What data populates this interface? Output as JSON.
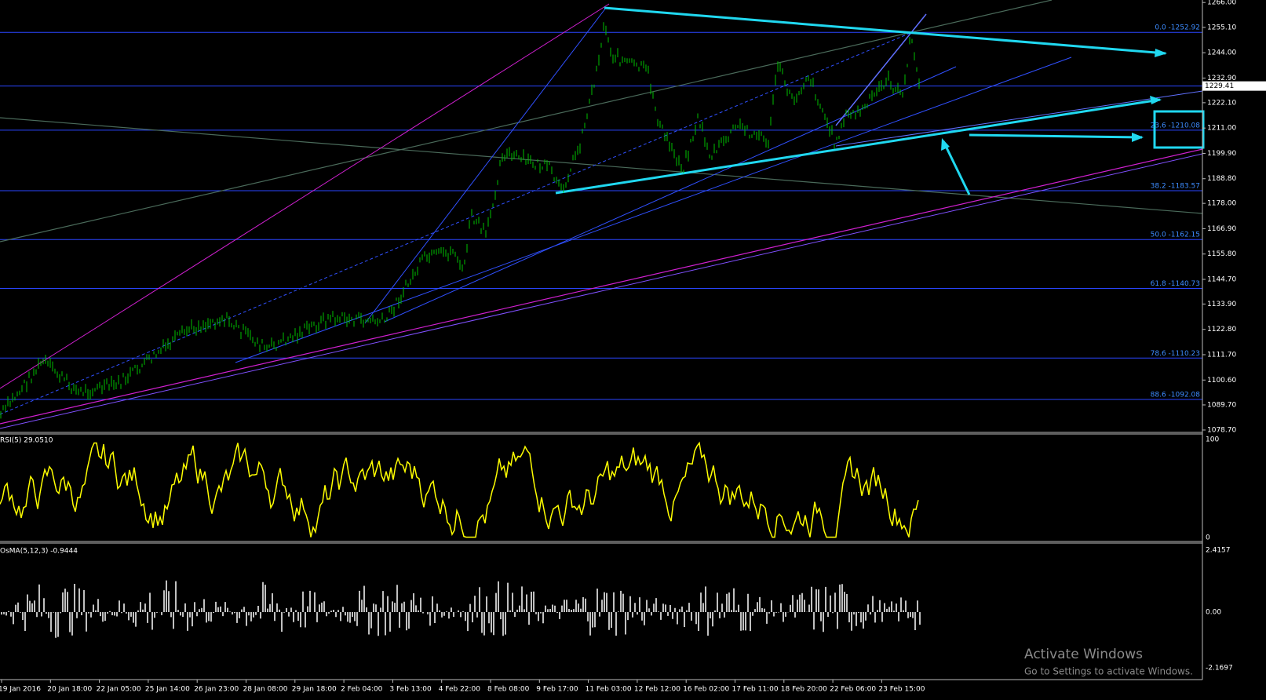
{
  "price_pane": {
    "ylim": [
      1078.0,
      1267.1
    ],
    "ticks": [
      {
        "value": 1266.0,
        "label": "1266.00"
      },
      {
        "value": 1255.1,
        "label": "1255.10"
      },
      {
        "value": 1244.0,
        "label": "1244.00"
      },
      {
        "value": 1232.9,
        "label": "1232.90"
      },
      {
        "value": 1222.1,
        "label": "1222.10"
      },
      {
        "value": 1211.0,
        "label": "1211.00"
      },
      {
        "value": 1199.9,
        "label": "1199.90"
      },
      {
        "value": 1188.8,
        "label": "1188.80"
      },
      {
        "value": 1178.0,
        "label": "1178.00"
      },
      {
        "value": 1166.9,
        "label": "1166.90"
      },
      {
        "value": 1155.8,
        "label": "1155.80"
      },
      {
        "value": 1144.7,
        "label": "1144.70"
      },
      {
        "value": 1133.9,
        "label": "1133.90"
      },
      {
        "value": 1122.8,
        "label": "1122.80"
      },
      {
        "value": 1111.7,
        "label": "1111.70"
      },
      {
        "value": 1100.6,
        "label": "1100.60"
      },
      {
        "value": 1089.7,
        "label": "1089.70"
      },
      {
        "value": 1078.7,
        "label": "1078.70"
      }
    ],
    "current_price": 1229.41,
    "fib_levels": [
      {
        "value": 1252.92,
        "label": "0.0 -1252.92"
      },
      {
        "value": 1210.08,
        "label": "23.6 -1210.08"
      },
      {
        "value": 1183.57,
        "label": "38.2 -1183.57"
      },
      {
        "value": 1162.15,
        "label": "50.0 -1162.15"
      },
      {
        "value": 1140.73,
        "label": "61.8 -1140.73"
      },
      {
        "value": 1110.23,
        "label": "78.6 -1110.23"
      },
      {
        "value": 1092.08,
        "label": "88.6 -1092.08"
      }
    ]
  },
  "rsi_pane": {
    "label": "RSI(5) 29.0510",
    "ylim": [
      0,
      100
    ],
    "ticks": [
      100,
      0
    ]
  },
  "osma_pane": {
    "label": "OsMA(5,12,3) -0.9444",
    "ylim": [
      -2.1697,
      2.4157
    ],
    "ticks": [
      2.4157,
      {
        "value": 0,
        "label": "0.00"
      },
      -2.1697
    ]
  },
  "time_axis": [
    "19 Jan 2016",
    "20 Jan 18:00",
    "22 Jan 05:00",
    "25 Jan 14:00",
    "26 Jan 23:00",
    "28 Jan 08:00",
    "29 Jan 18:00",
    "2 Feb 04:00",
    "3 Feb 13:00",
    "4 Feb 22:00",
    "8 Feb 08:00",
    "9 Feb 17:00",
    "11 Feb 03:00",
    "12 Feb 12:00",
    "16 Feb 02:00",
    "17 Feb 11:00",
    "18 Feb 20:00",
    "22 Feb 06:00",
    "23 Feb 15:00"
  ],
  "watermark": {
    "title": "Activate Windows",
    "subtitle": "Go to Settings to activate Windows."
  }
}
